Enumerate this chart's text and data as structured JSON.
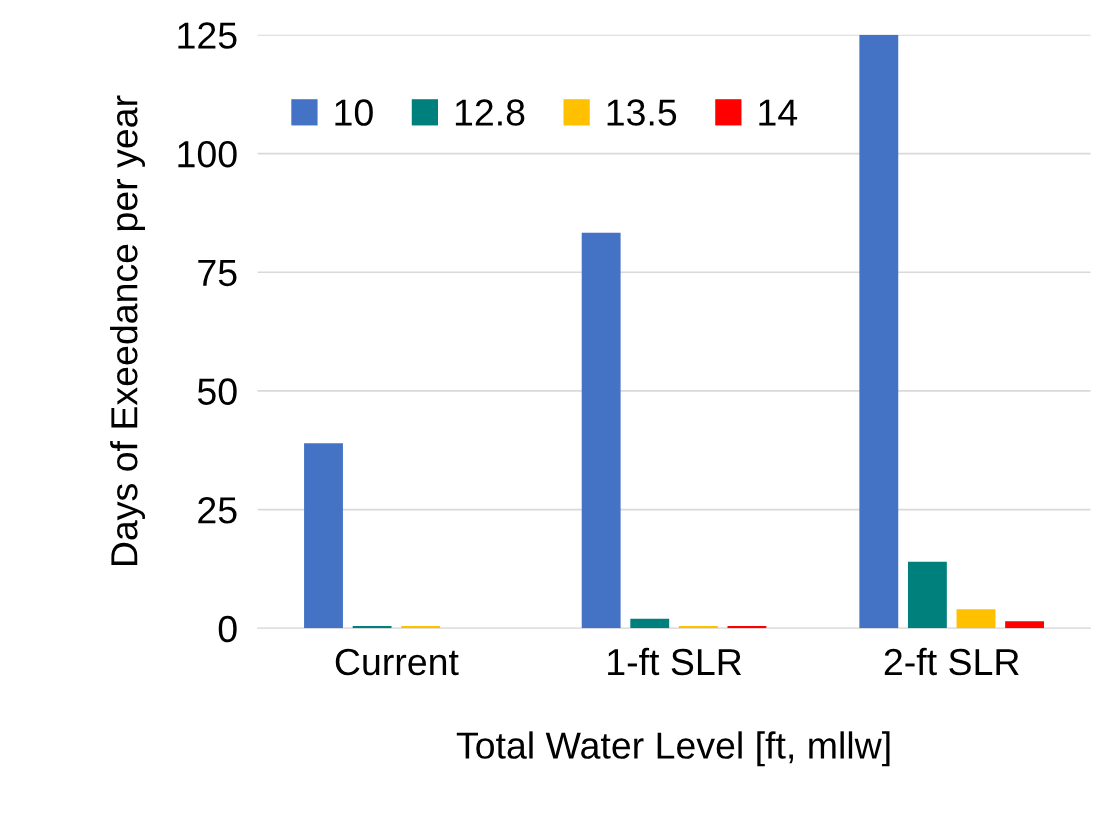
{
  "chart_data": {
    "type": "bar",
    "xlabel": "Total Water Level [ft, mllw]",
    "ylabel": "Days of Exeedance per year",
    "categories": [
      "Current",
      "1-ft SLR",
      "2-ft SLR"
    ],
    "series": [
      {
        "name": "10",
        "color": "#4472c4",
        "values": [
          39,
          83.3,
          125
        ]
      },
      {
        "name": "12.8",
        "color": "#00807d",
        "values": [
          0.5,
          2,
          14
        ]
      },
      {
        "name": "13.5",
        "color": "#ffc000",
        "values": [
          0.5,
          0.5,
          4
        ]
      },
      {
        "name": "14",
        "color": "#ff0000",
        "values": [
          0,
          0.5,
          1.5
        ]
      }
    ],
    "ylim": [
      0,
      125
    ],
    "yticks": [
      0,
      25,
      50,
      75,
      100,
      125
    ],
    "grid": "y",
    "legend": "top left"
  }
}
